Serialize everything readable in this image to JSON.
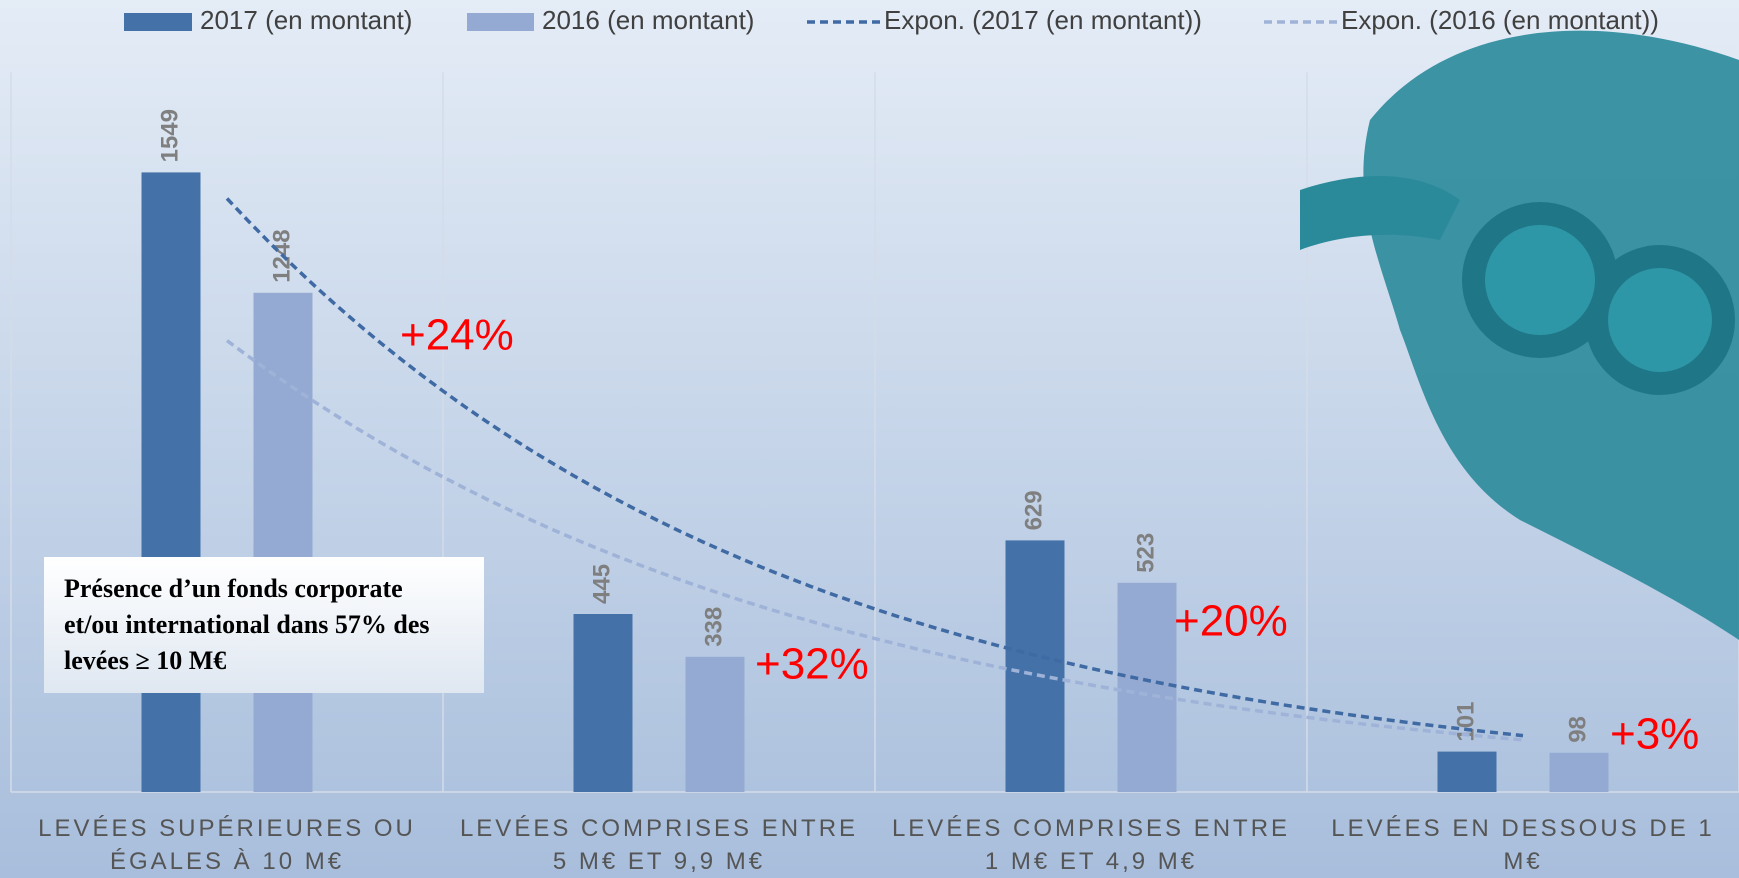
{
  "chart_data": {
    "type": "bar",
    "categories": [
      "LEVÉES SUPÉRIEURES OU ÉGALES À 10 M€",
      "LEVÉES COMPRISES ENTRE 5 M€ ET 9,9 M€",
      "LEVÉES COMPRISES ENTRE 1 M€ ET 4,9 M€",
      "LEVÉES EN DESSOUS DE 1 M€"
    ],
    "series": [
      {
        "name": "2017 (en montant)",
        "color": "#4472a8",
        "values": [
          1549,
          445,
          629,
          101
        ],
        "trendline": {
          "name": "Expon. (2017 (en montant))",
          "type": "exponential",
          "color": "#3f6aa3"
        }
      },
      {
        "name": "2016 (en montant)",
        "color": "#95aad2",
        "values": [
          1248,
          338,
          523,
          98
        ],
        "trendline": {
          "name": "Expon. (2016 (en montant))",
          "type": "exponential",
          "color": "#9fb3d8"
        }
      }
    ],
    "ylim": [
      0,
      1800
    ],
    "annotations": [
      "+24%",
      "+32%",
      "+20%",
      "+3%"
    ],
    "text_box": "Présence d’un fonds corporate et/ou international dans 57% des levées ≥ 10 M€"
  }
}
